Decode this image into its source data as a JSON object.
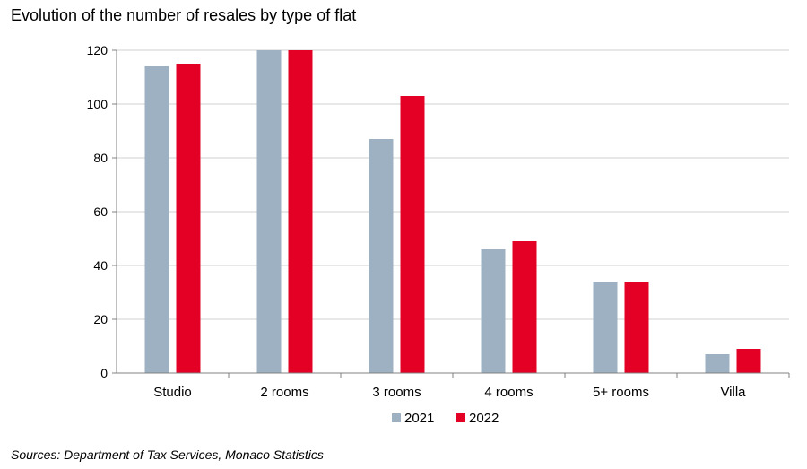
{
  "chart_data": {
    "type": "bar",
    "title": "Evolution of the number of resales by type of flat",
    "xlabel": "",
    "ylabel": "",
    "categories": [
      "Studio",
      "2 rooms",
      "3 rooms",
      "4 rooms",
      "5+ rooms",
      "Villa"
    ],
    "series": [
      {
        "name": "2021",
        "color": "#9DB1C2",
        "values": [
          114,
          120,
          87,
          46,
          34,
          7
        ]
      },
      {
        "name": "2022",
        "color": "#E30024",
        "values": [
          115,
          120,
          103,
          49,
          34,
          9
        ]
      }
    ],
    "ylim": [
      0,
      120
    ],
    "yticks": [
      0,
      20,
      40,
      60,
      80,
      100,
      120
    ],
    "grid": true,
    "legend_position": "bottom-center"
  },
  "source": "Sources: Department of Tax Services, Monaco Statistics"
}
